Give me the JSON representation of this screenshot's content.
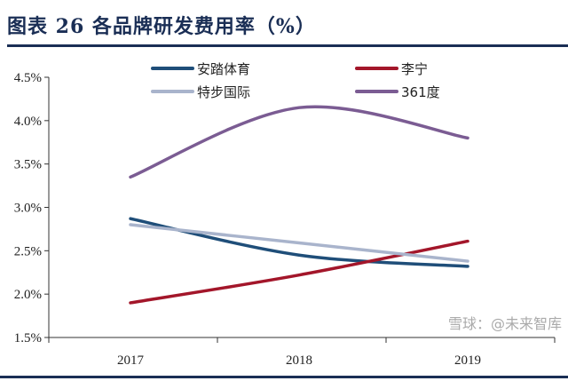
{
  "title": "图表 26   各品牌研发费用率（%）",
  "watermark": "雪球：@未来智库",
  "chart_data": {
    "type": "line",
    "title": "各品牌研发费用率（%）",
    "xlabel": "",
    "ylabel": "",
    "categories": [
      "2017",
      "2018",
      "2019"
    ],
    "ylim": [
      1.5,
      4.5
    ],
    "yticks": [
      "1.5%",
      "2.0%",
      "2.5%",
      "3.0%",
      "3.5%",
      "4.0%",
      "4.5%"
    ],
    "ytick_values": [
      1.5,
      2.0,
      2.5,
      3.0,
      3.5,
      4.0,
      4.5
    ],
    "grid": false,
    "legend_position": "top",
    "smooth": true,
    "series": [
      {
        "name": "安踏体育",
        "color": "#1f4e79",
        "values": [
          2.87,
          2.45,
          2.32
        ]
      },
      {
        "name": "李宁",
        "color": "#a3162a",
        "values": [
          1.9,
          2.22,
          2.61
        ]
      },
      {
        "name": "特步国际",
        "color": "#a9b4cc",
        "values": [
          2.8,
          2.59,
          2.38
        ]
      },
      {
        "name": "361度",
        "color": "#7b5c93",
        "values": [
          3.35,
          4.15,
          3.8
        ]
      }
    ]
  }
}
